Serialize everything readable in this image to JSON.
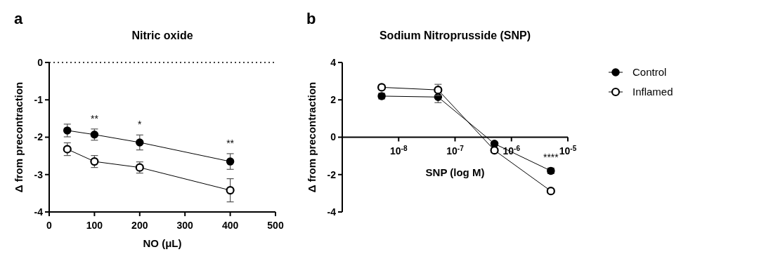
{
  "chart_data": [
    {
      "type": "line",
      "title": "Nitric oxide",
      "xlabel": "NO (μL)",
      "ylabel": "Δ from precontraction",
      "x": [
        40,
        100,
        200,
        400
      ],
      "xlim": [
        0,
        500
      ],
      "xticks": [
        0,
        100,
        200,
        300,
        400,
        500
      ],
      "ylim": [
        -4,
        0
      ],
      "yticks": [
        -4,
        -3,
        -2,
        -1,
        0
      ],
      "grid": false,
      "legend": false,
      "series": [
        {
          "color": "#000000",
          "marker": "circle",
          "values": [
            -1.82,
            -1.93,
            -2.14,
            -2.65
          ],
          "errors": [
            0.17,
            0.15,
            0.2,
            0.21
          ]
        },
        {
          "color": "#000000",
          "marker": "circle-open",
          "values": [
            -2.32,
            -2.65,
            -2.81,
            -3.42
          ],
          "errors": [
            0.17,
            0.16,
            0.15,
            0.31
          ]
        }
      ],
      "ref_lines": [
        {
          "axis": "y",
          "value": 0,
          "line_style": "dotted",
          "color": "#000000"
        }
      ],
      "annotations": [
        "a",
        {
          "text": "**",
          "x": 100,
          "y": -1.93
        },
        {
          "text": "*",
          "x": 200,
          "y": -2.14
        },
        {
          "text": "**",
          "x": 400,
          "y": -2.65
        }
      ]
    },
    {
      "type": "line",
      "title": "Sodium Nitroprusside (SNP)",
      "xlabel": "SNP (log M)",
      "ylabel": "Δ from precontraction",
      "log": "x",
      "x": [
        5e-09,
        5e-08,
        5e-07,
        5e-06
      ],
      "xlim": [
        1e-09,
        1e-05
      ],
      "xticks": [
        {
          "value": 1e-08,
          "label": "10$^{-8}$"
        },
        {
          "value": 1e-07,
          "label": "10$^{-7}$"
        },
        {
          "value": 1e-06,
          "label": "10$^{-6}$"
        },
        {
          "value": 1e-05,
          "label": "10$^{-5}$"
        }
      ],
      "ylim": [
        -4,
        4
      ],
      "yticks": [
        -4,
        -2,
        0,
        2,
        4
      ],
      "grid": false,
      "legend": "top right",
      "series": [
        {
          "name": "Control",
          "color": "#000000",
          "marker": "circle",
          "values": [
            2.2,
            2.15,
            -0.35,
            -1.8
          ],
          "errors": [
            0.15,
            0.3,
            0.08,
            0.15
          ]
        },
        {
          "name": "Inflamed",
          "color": "#000000",
          "marker": "circle-open",
          "values": [
            2.67,
            2.53,
            -0.7,
            -2.88
          ],
          "errors": [
            0.12,
            0.3,
            0.08,
            0.1
          ]
        }
      ],
      "annotations": [
        "b",
        {
          "text": "****",
          "x": 5e-06,
          "y": -1.8
        }
      ]
    }
  ]
}
